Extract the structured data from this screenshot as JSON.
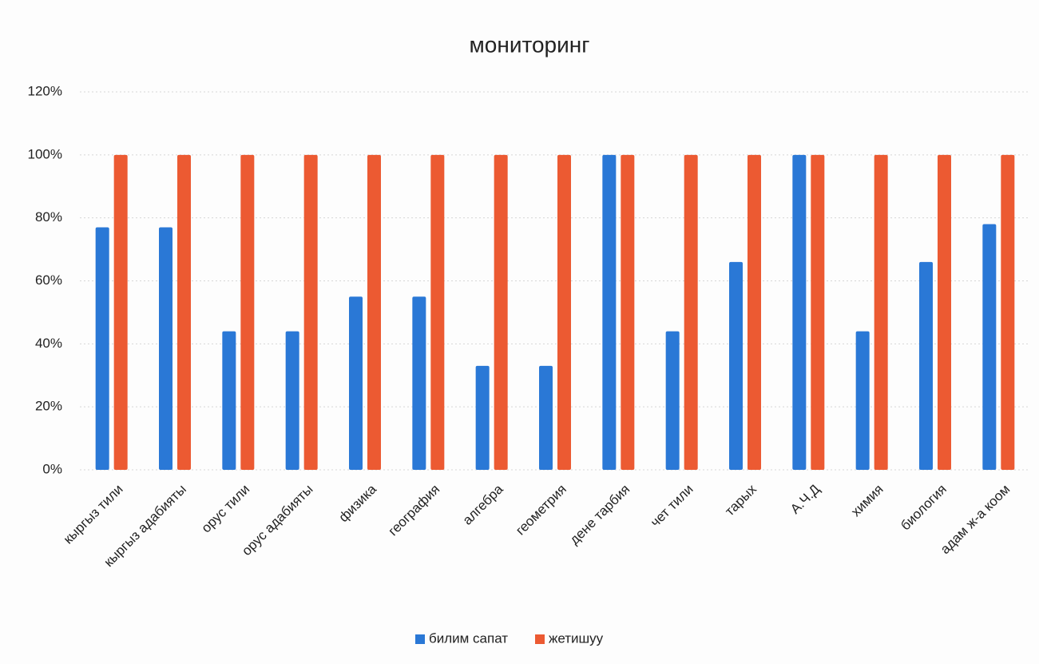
{
  "chart_data": {
    "type": "bar",
    "title": "мониторинг",
    "categories": [
      "кыргыз тили",
      "кыргыз адабияты",
      "орус тили",
      "орус адабияты",
      "физика",
      "география",
      "алгебра",
      "геометрия",
      "дене тарбия",
      "чет тили",
      "тарых",
      "А.Ч.Д",
      "химия",
      "биология",
      "адам ж-а коом"
    ],
    "series": [
      {
        "name": "билим сапат",
        "color": "#2a78d6",
        "values": [
          77,
          77,
          44,
          44,
          55,
          55,
          33,
          33,
          100,
          44,
          66,
          100,
          44,
          66,
          78
        ]
      },
      {
        "name": "жетишуу",
        "color": "#ec5a32",
        "values": [
          100,
          100,
          100,
          100,
          100,
          100,
          100,
          100,
          100,
          100,
          100,
          100,
          100,
          100,
          100
        ]
      }
    ],
    "ylim": [
      0,
      120
    ],
    "yticks": [
      {
        "value": 0,
        "label": "0%"
      },
      {
        "value": 20,
        "label": "20%"
      },
      {
        "value": 40,
        "label": "40%"
      },
      {
        "value": 60,
        "label": "60%"
      },
      {
        "value": 80,
        "label": "80%"
      },
      {
        "value": 100,
        "label": "100%"
      },
      {
        "value": 120,
        "label": "120%"
      }
    ],
    "grid": true,
    "legend": "bottom"
  }
}
